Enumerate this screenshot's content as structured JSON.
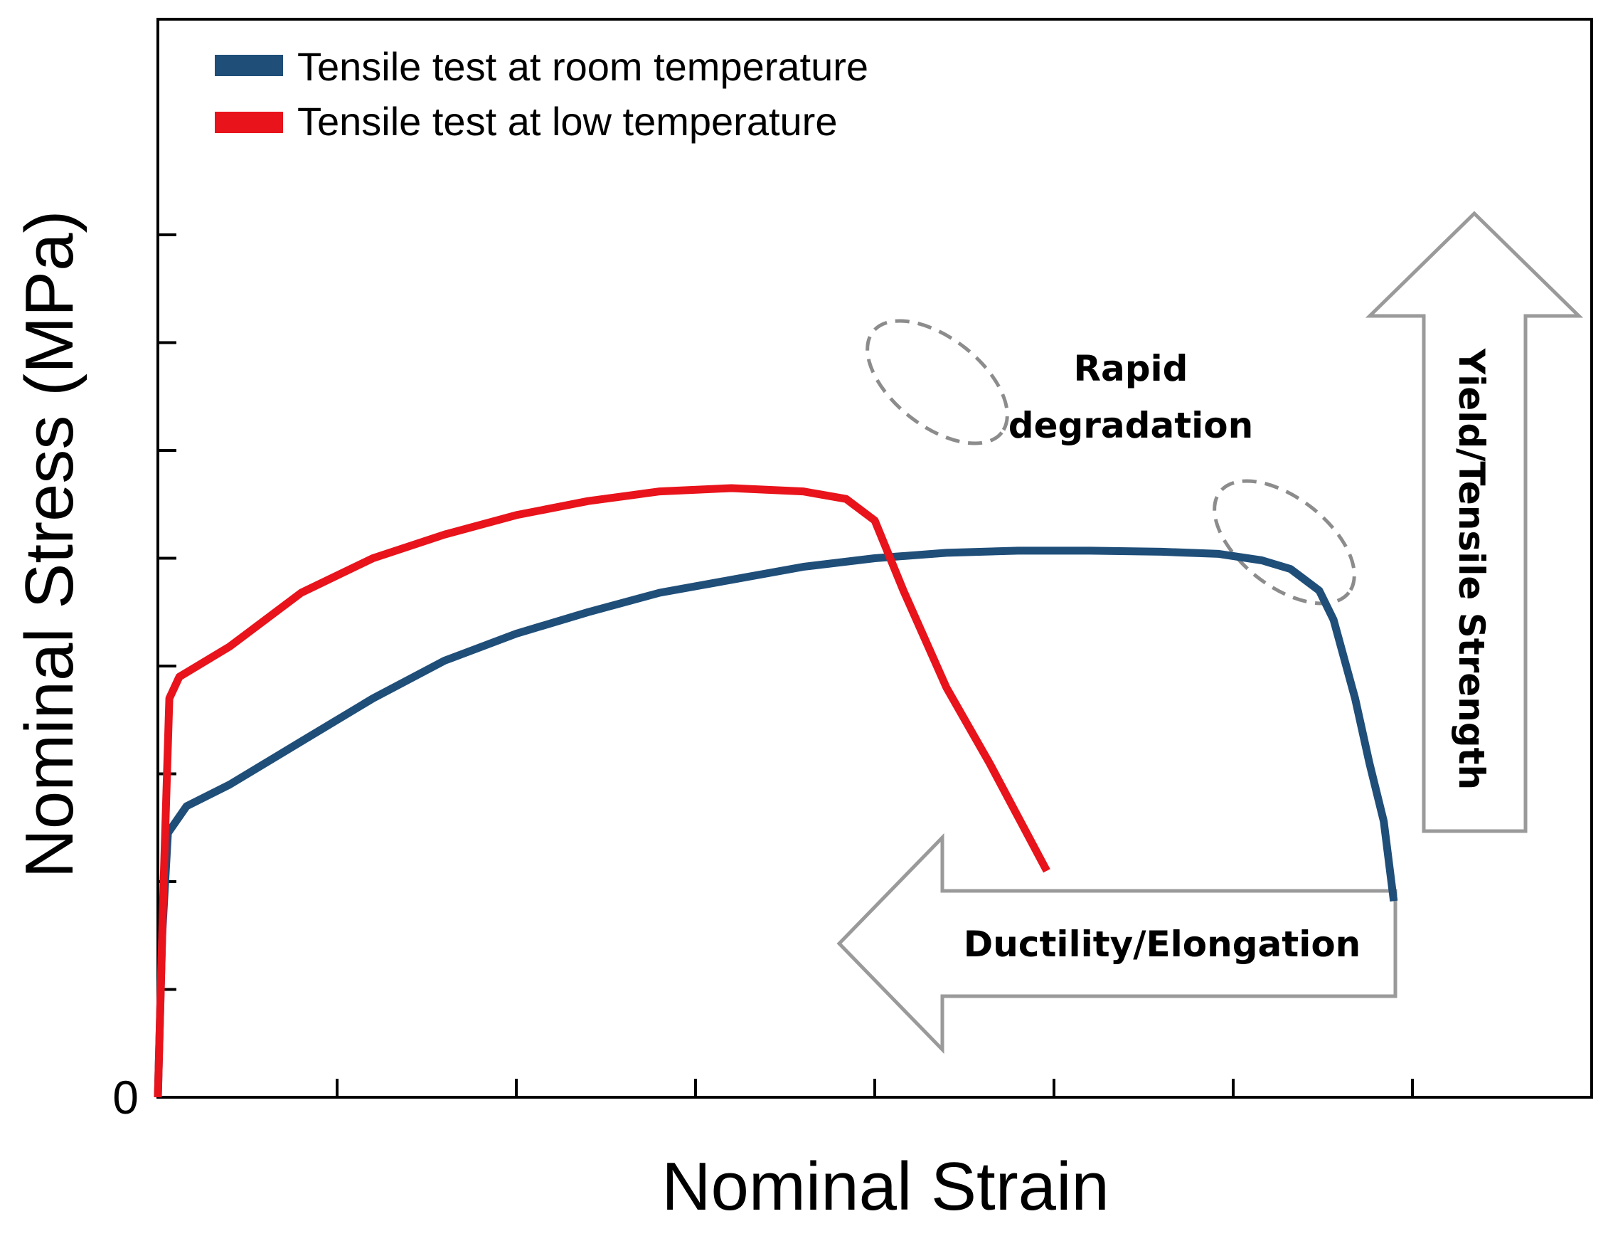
{
  "chart_data": {
    "type": "line",
    "title": "",
    "xlabel": "Nominal Strain",
    "ylabel": "Nominal Stress (MPa)",
    "xlim": [
      0,
      1
    ],
    "ylim": [
      0,
      1
    ],
    "y_origin_label": "0",
    "x_ticks": [
      0.125,
      0.25,
      0.375,
      0.5,
      0.625,
      0.75,
      0.875
    ],
    "y_ticks": [
      0.1,
      0.2,
      0.3,
      0.4,
      0.5,
      0.6,
      0.7,
      0.8
    ],
    "grid": false,
    "legend_position": "top-left",
    "series": [
      {
        "name": "Tensile test at room temperature",
        "color": "#1f4e79",
        "x": [
          0.0,
          0.003,
          0.007,
          0.02,
          0.05,
          0.1,
          0.15,
          0.2,
          0.25,
          0.3,
          0.35,
          0.4,
          0.45,
          0.5,
          0.55,
          0.6,
          0.65,
          0.7,
          0.74,
          0.77,
          0.79,
          0.8,
          0.81,
          0.82,
          0.835,
          0.845,
          0.855,
          0.862
        ],
        "y": [
          0.0,
          0.15,
          0.245,
          0.27,
          0.29,
          0.33,
          0.37,
          0.405,
          0.43,
          0.45,
          0.468,
          0.48,
          0.492,
          0.5,
          0.505,
          0.507,
          0.507,
          0.506,
          0.504,
          0.498,
          0.49,
          0.48,
          0.47,
          0.443,
          0.37,
          0.31,
          0.256,
          0.182
        ]
      },
      {
        "name": "Tensile test at low temperature",
        "color": "#e8131b",
        "x": [
          0.0,
          0.004,
          0.008,
          0.015,
          0.05,
          0.1,
          0.15,
          0.2,
          0.25,
          0.3,
          0.35,
          0.4,
          0.45,
          0.48,
          0.5,
          0.52,
          0.55,
          0.58,
          0.6,
          0.62
        ],
        "y": [
          0.0,
          0.2,
          0.37,
          0.39,
          0.418,
          0.468,
          0.5,
          0.522,
          0.54,
          0.553,
          0.562,
          0.565,
          0.562,
          0.555,
          0.535,
          0.47,
          0.38,
          0.31,
          0.26,
          0.21
        ]
      }
    ],
    "annotations": {
      "rapid_degradation_line1": "Rapid",
      "rapid_degradation_line2": "degradation",
      "ductility": "Ductility/Elongation",
      "strength": "Yield/Tensile Strength"
    }
  }
}
